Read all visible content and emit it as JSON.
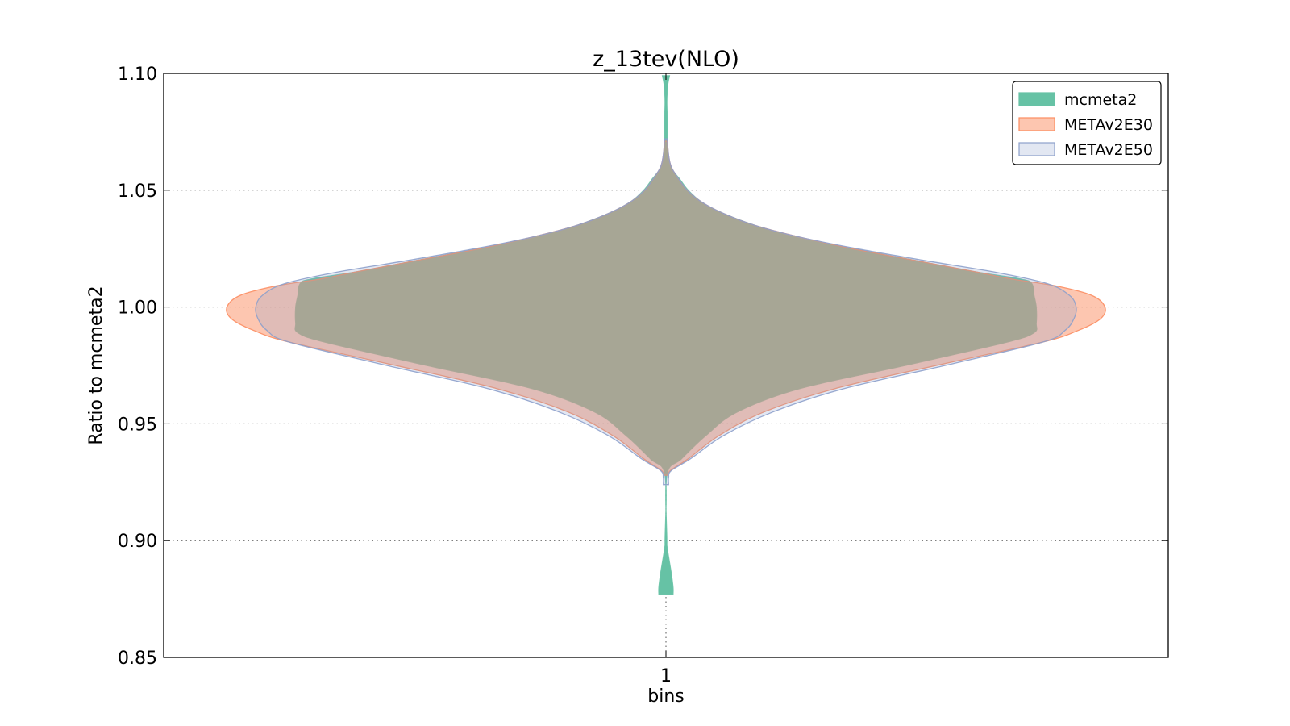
{
  "chart_data": {
    "type": "violin",
    "title": "z_13tev(NLO)",
    "xlabel": "bins",
    "ylabel": "Ratio to mcmeta2",
    "categories": [
      "1"
    ],
    "ylim": [
      0.85,
      1.1
    ],
    "yticks": [
      0.85,
      0.9,
      0.95,
      1.0,
      1.05,
      1.1
    ],
    "ytick_labels": [
      "0.85",
      "0.90",
      "0.95",
      "1.00",
      "1.05",
      "1.10"
    ],
    "grid": true,
    "legend_position": "top-right",
    "series": [
      {
        "name": "mcmeta2",
        "color": "#66c2a5",
        "fill_opacity": 1.0,
        "range": [
          0.877,
          1.099
        ],
        "density_profile": [
          [
            0.877,
            0.016
          ],
          [
            0.88,
            0.016
          ],
          [
            0.886,
            0.012
          ],
          [
            0.893,
            0.006
          ],
          [
            0.898,
            0.002
          ],
          [
            0.9,
            0.002
          ],
          [
            0.928,
            0.002
          ],
          [
            0.935,
            0.035
          ],
          [
            0.945,
            0.09
          ],
          [
            0.955,
            0.16
          ],
          [
            0.965,
            0.3
          ],
          [
            0.975,
            0.54
          ],
          [
            0.985,
            0.77
          ],
          [
            0.989,
            0.83
          ],
          [
            0.993,
            0.835
          ],
          [
            1.0,
            0.835
          ],
          [
            1.005,
            0.83
          ],
          [
            1.01,
            0.825
          ],
          [
            1.012,
            0.8
          ],
          [
            1.015,
            0.7
          ],
          [
            1.02,
            0.56
          ],
          [
            1.025,
            0.42
          ],
          [
            1.03,
            0.29
          ],
          [
            1.035,
            0.2
          ],
          [
            1.04,
            0.13
          ],
          [
            1.045,
            0.08
          ],
          [
            1.05,
            0.05
          ],
          [
            1.055,
            0.03
          ],
          [
            1.06,
            0.01
          ],
          [
            1.065,
            0.005
          ],
          [
            1.07,
            0.003
          ],
          [
            1.08,
            0.003
          ],
          [
            1.088,
            0.002
          ],
          [
            1.095,
            0.004
          ],
          [
            1.099,
            0.008
          ]
        ]
      },
      {
        "name": "METAv2E30",
        "color": "#fc8d62",
        "fill_opacity": 0.5,
        "range": [
          0.928,
          1.071
        ],
        "density_profile": [
          [
            0.928,
            0.004
          ],
          [
            0.93,
            0.01
          ],
          [
            0.935,
            0.05
          ],
          [
            0.945,
            0.12
          ],
          [
            0.955,
            0.22
          ],
          [
            0.965,
            0.38
          ],
          [
            0.975,
            0.61
          ],
          [
            0.985,
            0.85
          ],
          [
            0.99,
            0.93
          ],
          [
            0.995,
            0.98
          ],
          [
            1.0,
            0.99
          ],
          [
            1.005,
            0.96
          ],
          [
            1.009,
            0.88
          ],
          [
            1.012,
            0.78
          ],
          [
            1.015,
            0.7
          ],
          [
            1.02,
            0.56
          ],
          [
            1.025,
            0.42
          ],
          [
            1.03,
            0.3
          ],
          [
            1.035,
            0.2
          ],
          [
            1.04,
            0.13
          ],
          [
            1.045,
            0.08
          ],
          [
            1.05,
            0.048
          ],
          [
            1.055,
            0.028
          ],
          [
            1.06,
            0.012
          ],
          [
            1.065,
            0.006
          ],
          [
            1.071,
            0.003
          ]
        ]
      },
      {
        "name": "METAv2E50",
        "color": "#8da0cb",
        "fill_opacity": 0.25,
        "range": [
          0.924,
          1.072
        ],
        "density_profile": [
          [
            0.924,
            0.006
          ],
          [
            0.927,
            0.006
          ],
          [
            0.93,
            0.012
          ],
          [
            0.935,
            0.055
          ],
          [
            0.945,
            0.13
          ],
          [
            0.955,
            0.24
          ],
          [
            0.965,
            0.4
          ],
          [
            0.975,
            0.63
          ],
          [
            0.985,
            0.85
          ],
          [
            0.99,
            0.9
          ],
          [
            0.995,
            0.92
          ],
          [
            1.0,
            0.925
          ],
          [
            1.005,
            0.91
          ],
          [
            1.01,
            0.86
          ],
          [
            1.015,
            0.74
          ],
          [
            1.02,
            0.58
          ],
          [
            1.025,
            0.43
          ],
          [
            1.03,
            0.3
          ],
          [
            1.035,
            0.2
          ],
          [
            1.04,
            0.13
          ],
          [
            1.045,
            0.08
          ],
          [
            1.05,
            0.048
          ],
          [
            1.055,
            0.028
          ],
          [
            1.06,
            0.012
          ],
          [
            1.065,
            0.006
          ],
          [
            1.072,
            0.003
          ]
        ]
      }
    ]
  }
}
